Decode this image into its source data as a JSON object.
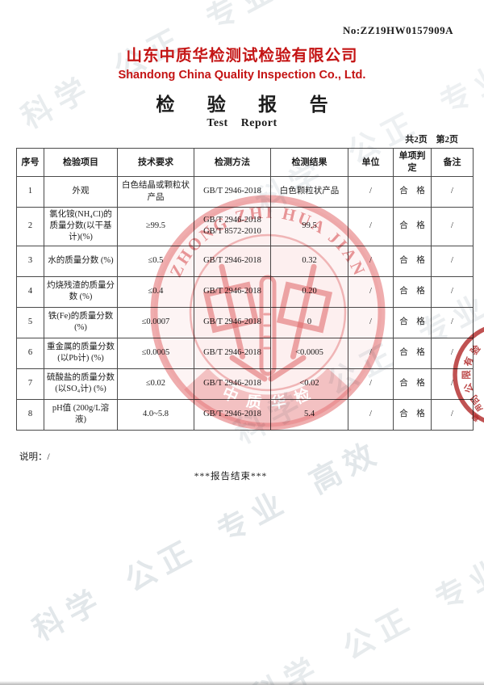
{
  "report": {
    "no_label": "No:ZZ19HW0157909A",
    "company_cn": "山东中质华检测试检验有限公司",
    "company_en": "Shandong China Quality Inspection Co., Ltd.",
    "title_cn": "检 验 报 告",
    "title_en": "Test Report",
    "page_info": "共2页 第2页",
    "note_label": "说明：/",
    "end_text": "***报告结束***"
  },
  "colors": {
    "brand_red": "#c41414",
    "stamp_red": "#d4605f",
    "watermark_gray": "#c7d0d6"
  },
  "watermark": {
    "text": "科学 公正 专业 高效"
  },
  "stamp": {
    "arc_text": "ZHONG ZHI HUA JIAN",
    "bottom_text": "中 质 华 检"
  },
  "partial_stamp": {
    "chars": [
      "验",
      "有",
      "限",
      "公",
      "司"
    ],
    "extra1": "用",
    "extra2": "章"
  },
  "table": {
    "headers": [
      "序号",
      "检验项目",
      "技术要求",
      "检测方法",
      "检测结果",
      "单位",
      "单项判定",
      "备注"
    ],
    "rows": [
      [
        "1",
        "外观",
        "白色结晶或颗粒状产品",
        "GB/T 2946-2018",
        "白色颗粒状产品",
        "/",
        "合　格",
        "/"
      ],
      [
        "2",
        "氯化铵(NH₄Cl)的质量分数(以干基计)(%)",
        "≥99.5",
        "GB/T 2946-2018\nGB/T 8572-2010",
        "99.5",
        "/",
        "合　格",
        "/"
      ],
      [
        "3",
        "水的质量分数 (%)",
        "≤0.5",
        "GB/T 2946-2018",
        "0.32",
        "/",
        "合　格",
        "/"
      ],
      [
        "4",
        "灼烧残渣的质量分数 (%)",
        "≤0.4",
        "GB/T 2946-2018",
        "0.20",
        "/",
        "合　格",
        "/"
      ],
      [
        "5",
        "铁(Fe)的质量分数 (%)",
        "≤0.0007",
        "GB/T 2946-2018",
        "0",
        "/",
        "合　格",
        "/"
      ],
      [
        "6",
        "重金属的质量分数(以Pb计) (%)",
        "≤0.0005",
        "GB/T 2946-2018",
        "<0.0005",
        "/",
        "合　格",
        "/"
      ],
      [
        "7",
        "硫酸盐的质量分数(以SO₄计) (%)",
        "≤0.02",
        "GB/T 2946-2018",
        "<0.02",
        "/",
        "合　格",
        "/"
      ],
      [
        "8",
        "pH值 (200g/L溶液)",
        "4.0~5.8",
        "GB/T 2946-2018",
        "5.4",
        "/",
        "合　格",
        "/"
      ]
    ]
  }
}
